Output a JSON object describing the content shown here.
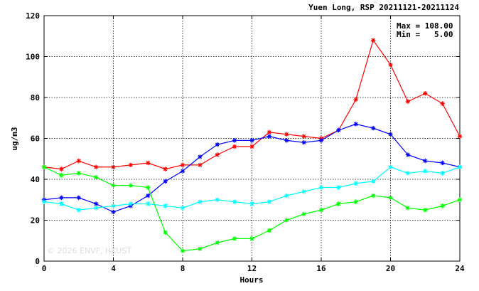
{
  "chart_data": {
    "type": "line",
    "title": "Yuen Long, RSP 20211121-20211124",
    "xlabel": "Hours",
    "ylabel": "ug/m3",
    "xlim": [
      0,
      24
    ],
    "ylim": [
      0,
      120
    ],
    "xticks": [
      0,
      4,
      8,
      12,
      16,
      20,
      24
    ],
    "yticks": [
      0,
      20,
      40,
      60,
      80,
      100,
      120
    ],
    "grid": true,
    "stats": {
      "max_label": "Max = 108.00",
      "min_label": "Min =   5.00"
    },
    "watermark": "© 2026  ENVF, HKUST",
    "x": [
      0,
      1,
      2,
      3,
      4,
      5,
      6,
      7,
      8,
      9,
      10,
      11,
      12,
      13,
      14,
      15,
      16,
      17,
      18,
      19,
      20,
      21,
      22,
      23,
      24
    ],
    "series": [
      {
        "color": "#ff0000",
        "values": [
          46,
          45,
          49,
          46,
          46,
          47,
          48,
          45,
          47,
          47,
          52,
          56,
          56,
          63,
          62,
          61,
          60,
          64,
          79,
          108,
          96,
          78,
          82,
          77,
          61
        ]
      },
      {
        "color": "#0000ff",
        "values": [
          30,
          31,
          31,
          28,
          24,
          27,
          32,
          39,
          44,
          51,
          57,
          59,
          59,
          61,
          59,
          58,
          59,
          64,
          67,
          65,
          62,
          52,
          49,
          48,
          46
        ]
      },
      {
        "color": "#00ffff",
        "values": [
          29,
          28,
          25,
          26,
          27,
          28,
          28,
          27,
          26,
          29,
          30,
          29,
          28,
          29,
          32,
          34,
          36,
          36,
          38,
          39,
          46,
          43,
          44,
          43,
          46
        ]
      },
      {
        "color": "#00ff00",
        "values": [
          46,
          42,
          43,
          41,
          37,
          37,
          36,
          14,
          5,
          6,
          9,
          11,
          11,
          15,
          20,
          23,
          25,
          28,
          29,
          32,
          31,
          26,
          25,
          27,
          30
        ]
      }
    ]
  }
}
